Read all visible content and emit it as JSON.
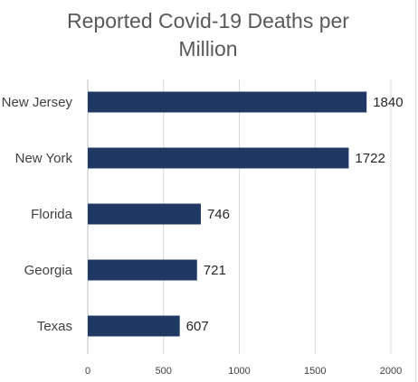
{
  "chart_data": {
    "type": "bar",
    "orientation": "horizontal",
    "title": "Reported Covid-19 Deaths per Million",
    "categories": [
      "New Jersey",
      "New York",
      "Florida",
      "Georgia",
      "Texas"
    ],
    "values": [
      1840,
      1722,
      746,
      721,
      607
    ],
    "data_labels": [
      "1840",
      "1722",
      "746",
      "721",
      "607"
    ],
    "xlim": [
      0,
      2000
    ],
    "x_ticks": [
      0,
      500,
      1000,
      1500,
      2000
    ],
    "x_tick_labels": [
      "0",
      "500",
      "1000",
      "1500",
      "2000"
    ],
    "xlabel": "",
    "ylabel": "",
    "grid": true,
    "legend": "none",
    "bar_color": "#203864",
    "grid_color": "#d9d9d9"
  }
}
